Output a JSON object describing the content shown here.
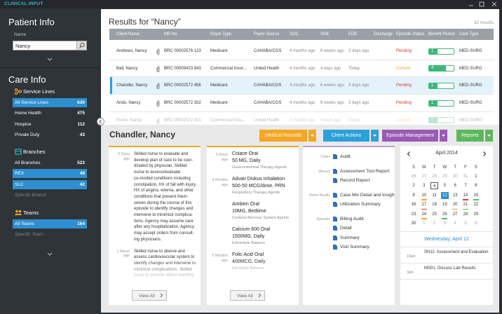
{
  "app_title": "CLINICAL INPUT",
  "sidebar": {
    "patient_info": "Patient Info",
    "name_label": "Name",
    "name_value": "Nancy",
    "care_info": "Care Info",
    "groups": [
      {
        "title": "Service Lines",
        "icon_color": "#f5a623",
        "items": [
          {
            "label": "All Service Lines",
            "count": 630,
            "selected": true
          },
          {
            "label": "Home Health",
            "count": 475
          },
          {
            "label": "Hospice",
            "count": 112
          },
          {
            "label": "Private Duty",
            "count": 43
          }
        ]
      },
      {
        "title": "Branches",
        "icon_color": "#2ab3c4",
        "items": [
          {
            "label": "All Branches",
            "count": 523
          },
          {
            "label": "REX",
            "count": 48,
            "selected": true
          },
          {
            "label": "SLC",
            "count": 42,
            "selected": true
          },
          {
            "label": "Specific Branch",
            "placeholder": true
          }
        ]
      },
      {
        "title": "Teams",
        "icon_color": "#f5a623",
        "items": [
          {
            "label": "All Teams",
            "count": 164,
            "selected": true
          },
          {
            "label": "Specific Team",
            "placeholder": true
          }
        ]
      }
    ]
  },
  "results": {
    "title": "Results for “Nancy”",
    "count_label": "32 results",
    "columns": [
      "Client Name",
      "MR No",
      "Payor Type",
      "Payor Source",
      "SOC",
      "SOE",
      "EOE",
      "Discharge",
      "Episode Status",
      "Benefit Period",
      "Care Type"
    ],
    "status_colors": {
      "Pending": "#e2332f",
      "Current": "#f39c12"
    },
    "benefit_color": "#3cb878",
    "rows": [
      {
        "cells": [
          "Andrews, Nancy",
          "BRC 00002576 123",
          "Medicare",
          "CAHABA/CGS",
          "4 months ago",
          "6 weeks ago",
          "3 days ago",
          null,
          "Pending",
          1,
          "MED-SURG"
        ]
      },
      {
        "cells": [
          "Ball, Nancy",
          "BRC 00009423 943",
          "Commercial Insur...",
          "United Health",
          "4 months ago",
          "4 days ago",
          "Today",
          null,
          "Current",
          4,
          "MED-SURG"
        ]
      },
      {
        "cells": [
          "Chandler, Nancy",
          "BRC 00002572 456",
          "Medicare",
          "CAHABA/CGS",
          "4 months ago",
          "6 weeks ago",
          "3 days ago",
          null,
          "Pending",
          1,
          "MED-SURG"
        ],
        "selected": true
      },
      {
        "cells": [
          "Ando, Nancy",
          "BRC 00002572 332",
          "Medicare",
          "CAHABA/CGS",
          "4 months ago",
          "6 weeks ago",
          "3 days ago",
          null,
          "Pending",
          1,
          "MED-SURG"
        ]
      },
      {
        "cells": [
          "Pedro, Nancy",
          "BRC 00002572 301",
          "Commercial Insu...",
          "United Health",
          "4 months ago",
          "4 days ago",
          "Today",
          null,
          "Current",
          1,
          "MED-SURG"
        ],
        "faded": true
      }
    ]
  },
  "patient": {
    "name": "Chandler, Nancy",
    "actions": [
      {
        "label": "Medical Records",
        "color": "#f5a623"
      },
      {
        "label": "Client Actions",
        "color": "#2d9fd9"
      },
      {
        "label": "Episode Management",
        "color": "#9b59b6"
      },
      {
        "label": "Reports",
        "color": "#5cb85c"
      }
    ]
  },
  "notes": {
    "entries": [
      {
        "time": "3 Days ago",
        "lines": [
          "Skilled nurse to evaluate and",
          "develop plan of care to be coor-",
          "dinated by physician.  Skilled",
          "nurse to assess/evaluate",
          "co-morbid conditions including",
          "constipation, HX of fall with injury,",
          "HX of angina, edema, and other",
          "conditions that present them-",
          "selves during the course of this",
          "episode to identify changes and",
          "intervene to minimize complica-",
          "tions.  Agency may assume care",
          "after any hospitalization.  Agency",
          "may accept orders from consult-",
          "ing physicians."
        ]
      },
      {
        "time": "1 Week ago",
        "lines": [
          "Skilled nurse to oberve and",
          "assess cardiovascular system to",
          "identify changes and intervene to",
          "minimize complications.  Skilled",
          "nurse to provide skilled teaching"
        ]
      }
    ],
    "view_all": "View All"
  },
  "medications": {
    "groups": [
      {
        "time": "3 Days ago",
        "meds": [
          {
            "name": "Colace Oral",
            "dose": "50 MG, Daily",
            "class": "Gastrointestinal Therapy Agents"
          }
        ]
      },
      {
        "time": "4 Months ago",
        "meds": [
          {
            "name": "Advair Diskus Inhalation",
            "dose": "500-50 MCG/dose, PRN",
            "class": "Respiratory Therapy Agents"
          },
          {
            "name": "Ambien Oral",
            "dose": "10MG, Bedtime",
            "class": "Centeral Nervous System Agents"
          },
          {
            "name": "Calcium 600 Oral",
            "dose": "1500MG, Daily",
            "class": "Electrolyte Balance"
          }
        ]
      },
      {
        "time": "5 Months ago",
        "meds": [
          {
            "name": "Folic Acid Oral",
            "dose": "400MCG, Daily",
            "class": "Electolyte Balance"
          }
        ]
      }
    ],
    "view_all": "View All"
  },
  "reports": {
    "sections": [
      {
        "label": "Claim",
        "items": [
          "Audit"
        ]
      },
      {
        "label": "Wound",
        "items": [
          "Assessment Tool Report",
          "Record Report"
        ]
      },
      {
        "label": "Home Health",
        "items": [
          "Case Mix Detail and Insight",
          "Utilization Summary"
        ]
      },
      {
        "label": "Episode",
        "items": [
          "Billing Audit",
          "Detail",
          "Summary",
          "Visit Summary"
        ]
      }
    ]
  },
  "calendar": {
    "month": "April 2014",
    "weekdays": [
      "S",
      "M",
      "T",
      "W",
      "T",
      "F",
      "S"
    ],
    "weeks": [
      [
        "26",
        "27",
        "28",
        "29",
        "30",
        "31",
        "1"
      ],
      [
        "2",
        "3",
        "4",
        "5",
        "6",
        "7",
        "8"
      ],
      [
        "9",
        "10",
        "11",
        "12",
        "13",
        "14",
        "15"
      ],
      [
        "16",
        "17",
        "18",
        "19",
        "20",
        "21",
        "22"
      ],
      [
        "23",
        "24",
        "25",
        "26",
        "27",
        "28",
        "29"
      ],
      [
        "30",
        "1",
        "2",
        "3",
        "4",
        "5",
        "6"
      ]
    ],
    "today": "4",
    "selected": "12",
    "marks": [
      {
        "day": "10",
        "color": "#f5a623"
      },
      {
        "day": "14",
        "color": "#e2332f"
      },
      {
        "day": "15",
        "color": "#5cb85c"
      },
      {
        "day": "17",
        "color": "#e2332f"
      },
      {
        "day": "20",
        "color": "#f5a623"
      },
      {
        "day": "21",
        "color": "#5cb85c"
      },
      {
        "day": "24",
        "color": "#f5a623"
      },
      {
        "day": "26",
        "color": "#5cb85c"
      }
    ],
    "date_heading": "Wednesday, April 12",
    "events": [
      {
        "time": "10am",
        "title": "SN11: Assessment and Evaluation"
      },
      {
        "time": "3pm",
        "title": "MS01: Discuss Lab Results"
      }
    ]
  }
}
